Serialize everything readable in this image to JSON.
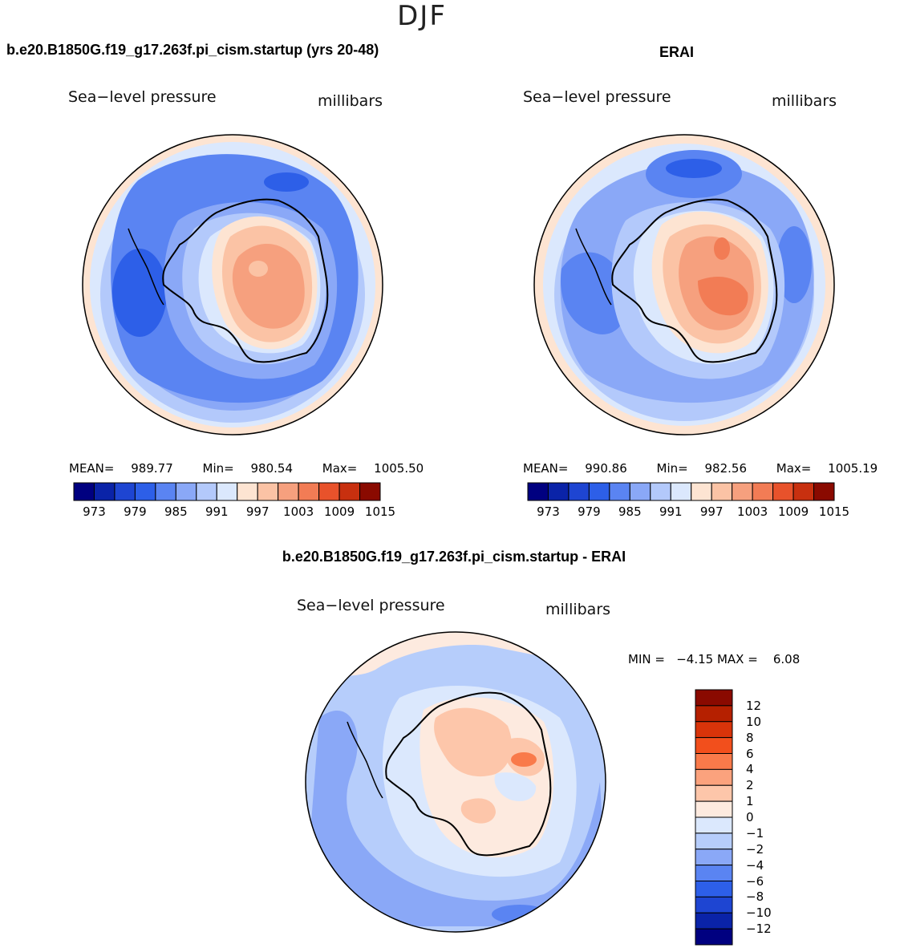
{
  "season": "DJF",
  "panels": [
    {
      "title": "b.e20.B1850G.f19_g17.263f.pi_cism.startup (yrs 20-48)",
      "variable": "Sea−level pressure",
      "units": "millibars",
      "stats": {
        "mean_label": "MEAN=",
        "mean": "989.77",
        "min_label": "Min=",
        "min": "980.54",
        "max_label": "Max=",
        "max": "1005.50"
      }
    },
    {
      "title": "ERAI",
      "variable": "Sea−level pressure",
      "units": "millibars",
      "stats": {
        "mean_label": "MEAN=",
        "mean": "990.86",
        "min_label": "Min=",
        "min": "982.56",
        "max_label": "Max=",
        "max": "1005.19"
      }
    }
  ],
  "diff_panel": {
    "title": "b.e20.B1850G.f19_g17.263f.pi_cism.startup - ERAI",
    "variable": "Sea−level pressure",
    "units": "millibars",
    "minmax_text": "MIN =   −4.15 MAX =    6.08"
  },
  "chart_data": [
    {
      "type": "heatmap",
      "projection": "south polar stereographic",
      "title": "b.e20.B1850G.f19_g17.263f.pi_cism.startup (yrs 20-48)",
      "variable": "Sea-level pressure",
      "units": "millibars",
      "mean": 989.77,
      "min": 980.54,
      "max": 1005.5,
      "colorbar_ticks": [
        "973",
        "979",
        "985",
        "991",
        "997",
        "1003",
        "1009",
        "1015"
      ],
      "colors": [
        "#000080",
        "#0a23a8",
        "#1e45d2",
        "#2d5fe8",
        "#5a84f2",
        "#8aa8f7",
        "#b3c9fb",
        "#dbe8fd",
        "#fde4d2",
        "#fbc3a5",
        "#f6a07e",
        "#f27c55",
        "#e8522b",
        "#c8300f",
        "#8a0a00"
      ]
    },
    {
      "type": "heatmap",
      "projection": "south polar stereographic",
      "title": "ERAI",
      "variable": "Sea-level pressure",
      "units": "millibars",
      "mean": 990.86,
      "min": 982.56,
      "max": 1005.19,
      "colorbar_ticks": [
        "973",
        "979",
        "985",
        "991",
        "997",
        "1003",
        "1009",
        "1015"
      ],
      "colors": [
        "#000080",
        "#0a23a8",
        "#1e45d2",
        "#2d5fe8",
        "#5a84f2",
        "#8aa8f7",
        "#b3c9fb",
        "#dbe8fd",
        "#fde4d2",
        "#fbc3a5",
        "#f6a07e",
        "#f27c55",
        "#e8522b",
        "#c8300f",
        "#8a0a00"
      ]
    },
    {
      "type": "heatmap",
      "projection": "south polar stereographic",
      "title": "b.e20.B1850G.f19_g17.263f.pi_cism.startup - ERAI",
      "variable": "Sea-level pressure",
      "units": "millibars",
      "min": -4.15,
      "max": 6.08,
      "colorbar_ticks": [
        "12",
        "10",
        "8",
        "6",
        "4",
        "2",
        "1",
        "0",
        "−1",
        "−2",
        "−4",
        "−6",
        "−8",
        "−10",
        "−12"
      ],
      "colors": [
        "#8a0a00",
        "#b52000",
        "#d8340a",
        "#f24f1c",
        "#f97a4a",
        "#fba27d",
        "#fdc6aa",
        "#fdeadf",
        "#dbe8fd",
        "#b6cdfb",
        "#8aa8f7",
        "#5a84f2",
        "#2d5fe8",
        "#1e45d2",
        "#0a23a8",
        "#000080"
      ]
    }
  ]
}
